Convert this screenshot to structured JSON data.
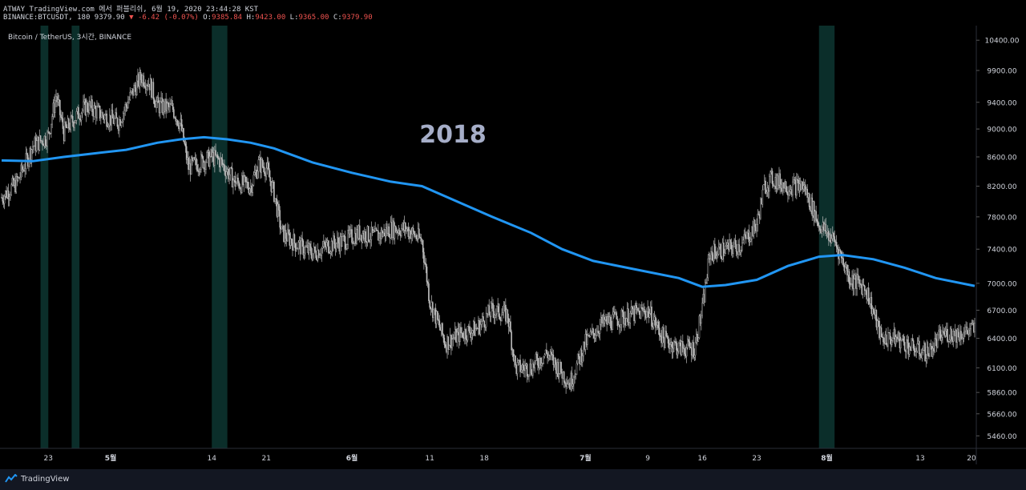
{
  "header": {
    "line1": "ATWAY TradingView.com 에서 퍼블리쉬, 6월 19, 2020 23:44:28 KST",
    "symbol_prefix": "BINANCE:BTCUSDT, 180 9379.90",
    "change": "▼ -6.42 (-0.07%)",
    "o_label": "O:",
    "o_value": "9385.84",
    "h_label": "H:",
    "h_value": "9423.00",
    "l_label": "L:",
    "l_value": "9365.00",
    "c_label": "C:",
    "c_value": "9379.90"
  },
  "footer": {
    "brand": "TradingView"
  },
  "colors": {
    "background": "#000000",
    "candle": "#bdbdbd",
    "moving_average": "#2196f3",
    "highlight_band": "#0b2e2a",
    "axis_text": "#d1d4dc",
    "annotation": "#a6aec8",
    "down": "#ef5350"
  },
  "chart_data": {
    "type": "line",
    "title": "Bitcoin / TetherUS, 3시간, BINANCE",
    "annotation": "2018",
    "y_ticks": [
      "10400.00",
      "9900.00",
      "9400.00",
      "9000.00",
      "8600.00",
      "8200.00",
      "7800.00",
      "7400.00",
      "7000.00",
      "6700.00",
      "6400.00",
      "6100.00",
      "5860.00",
      "5660.00",
      "5460.00"
    ],
    "y_tick_values": [
      10400,
      9900,
      9400,
      9000,
      8600,
      8200,
      7800,
      7400,
      7000,
      6700,
      6400,
      6100,
      5860,
      5660,
      5460
    ],
    "y_scale": "log",
    "ylim": [
      5350,
      10650
    ],
    "x_range": [
      "2018-04-17",
      "2018-08-20"
    ],
    "x_ticks": [
      {
        "date": "2018-04-23",
        "label": "23"
      },
      {
        "date": "2018-05-01",
        "label": "5월"
      },
      {
        "date": "2018-05-14",
        "label": "14"
      },
      {
        "date": "2018-05-21",
        "label": "21"
      },
      {
        "date": "2018-06-01",
        "label": "6월"
      },
      {
        "date": "2018-06-11",
        "label": "11"
      },
      {
        "date": "2018-06-18",
        "label": "18"
      },
      {
        "date": "2018-07-01",
        "label": "7월"
      },
      {
        "date": "2018-07-09",
        "label": "9"
      },
      {
        "date": "2018-07-16",
        "label": "16"
      },
      {
        "date": "2018-07-23",
        "label": "23"
      },
      {
        "date": "2018-08-01",
        "label": "8월"
      },
      {
        "date": "2018-08-13",
        "label": "13"
      },
      {
        "date": "2018-08-20",
        "label": "20"
      }
    ],
    "highlight_bands": [
      {
        "start": "2018-04-22",
        "end": "2018-04-23"
      },
      {
        "start": "2018-04-26",
        "end": "2018-04-27"
      },
      {
        "start": "2018-05-14",
        "end": "2018-05-16"
      },
      {
        "start": "2018-07-31",
        "end": "2018-08-02"
      }
    ],
    "series": [
      {
        "type": "candlestick_close",
        "points": [
          [
            "2018-04-17",
            8050
          ],
          [
            "2018-04-19",
            8250
          ],
          [
            "2018-04-21",
            8750
          ],
          [
            "2018-04-23",
            8900
          ],
          [
            "2018-04-24",
            9500
          ],
          [
            "2018-04-25",
            8950
          ],
          [
            "2018-04-27",
            9250
          ],
          [
            "2018-04-28",
            9350
          ],
          [
            "2018-04-30",
            9200
          ],
          [
            "2018-05-02",
            9100
          ],
          [
            "2018-05-04",
            9600
          ],
          [
            "2018-05-05",
            9800
          ],
          [
            "2018-05-06",
            9700
          ],
          [
            "2018-05-07",
            9350
          ],
          [
            "2018-05-09",
            9300
          ],
          [
            "2018-05-10",
            9050
          ],
          [
            "2018-05-11",
            8450
          ],
          [
            "2018-05-12",
            8500
          ],
          [
            "2018-05-14",
            8600
          ],
          [
            "2018-05-15",
            8550
          ],
          [
            "2018-05-17",
            8250
          ],
          [
            "2018-05-19",
            8200
          ],
          [
            "2018-05-20",
            8500
          ],
          [
            "2018-05-21",
            8450
          ],
          [
            "2018-05-22",
            8100
          ],
          [
            "2018-05-23",
            7600
          ],
          [
            "2018-05-25",
            7450
          ],
          [
            "2018-05-27",
            7350
          ],
          [
            "2018-05-29",
            7450
          ],
          [
            "2018-05-31",
            7500
          ],
          [
            "2018-06-02",
            7600
          ],
          [
            "2018-06-04",
            7550
          ],
          [
            "2018-06-06",
            7650
          ],
          [
            "2018-06-08",
            7650
          ],
          [
            "2018-06-10",
            7500
          ],
          [
            "2018-06-11",
            6800
          ],
          [
            "2018-06-13",
            6350
          ],
          [
            "2018-06-15",
            6450
          ],
          [
            "2018-06-17",
            6500
          ],
          [
            "2018-06-19",
            6700
          ],
          [
            "2018-06-21",
            6650
          ],
          [
            "2018-06-22",
            6100
          ],
          [
            "2018-06-24",
            6100
          ],
          [
            "2018-06-26",
            6250
          ],
          [
            "2018-06-28",
            6050
          ],
          [
            "2018-06-29",
            5950
          ],
          [
            "2018-07-01",
            6350
          ],
          [
            "2018-07-03",
            6550
          ],
          [
            "2018-07-05",
            6600
          ],
          [
            "2018-07-07",
            6650
          ],
          [
            "2018-07-09",
            6700
          ],
          [
            "2018-07-11",
            6400
          ],
          [
            "2018-07-13",
            6300
          ],
          [
            "2018-07-15",
            6300
          ],
          [
            "2018-07-16",
            6700
          ],
          [
            "2018-07-17",
            7350
          ],
          [
            "2018-07-19",
            7400
          ],
          [
            "2018-07-21",
            7450
          ],
          [
            "2018-07-23",
            7700
          ],
          [
            "2018-07-24",
            8200
          ],
          [
            "2018-07-25",
            8300
          ],
          [
            "2018-07-27",
            8200
          ],
          [
            "2018-07-29",
            8200
          ],
          [
            "2018-07-31",
            7700
          ],
          [
            "2018-08-02",
            7500
          ],
          [
            "2018-08-04",
            7050
          ],
          [
            "2018-08-06",
            6950
          ],
          [
            "2018-08-08",
            6400
          ],
          [
            "2018-08-10",
            6400
          ],
          [
            "2018-08-12",
            6300
          ],
          [
            "2018-08-14",
            6250
          ],
          [
            "2018-08-16",
            6450
          ],
          [
            "2018-08-18",
            6450
          ],
          [
            "2018-08-20",
            6500
          ]
        ]
      },
      {
        "type": "moving_average",
        "points": [
          [
            "2018-04-17",
            8550
          ],
          [
            "2018-04-21",
            8540
          ],
          [
            "2018-04-25",
            8600
          ],
          [
            "2018-04-29",
            8650
          ],
          [
            "2018-05-03",
            8700
          ],
          [
            "2018-05-07",
            8800
          ],
          [
            "2018-05-10",
            8850
          ],
          [
            "2018-05-13",
            8880
          ],
          [
            "2018-05-16",
            8850
          ],
          [
            "2018-05-19",
            8800
          ],
          [
            "2018-05-22",
            8720
          ],
          [
            "2018-05-27",
            8520
          ],
          [
            "2018-06-01",
            8380
          ],
          [
            "2018-06-06",
            8260
          ],
          [
            "2018-06-10",
            8200
          ],
          [
            "2018-06-14",
            8020
          ],
          [
            "2018-06-19",
            7800
          ],
          [
            "2018-06-24",
            7600
          ],
          [
            "2018-06-28",
            7400
          ],
          [
            "2018-07-02",
            7260
          ],
          [
            "2018-07-08",
            7150
          ],
          [
            "2018-07-13",
            7060
          ],
          [
            "2018-07-16",
            6960
          ],
          [
            "2018-07-19",
            6980
          ],
          [
            "2018-07-23",
            7040
          ],
          [
            "2018-07-27",
            7200
          ],
          [
            "2018-07-31",
            7310
          ],
          [
            "2018-08-03",
            7330
          ],
          [
            "2018-08-07",
            7280
          ],
          [
            "2018-08-11",
            7180
          ],
          [
            "2018-08-15",
            7060
          ],
          [
            "2018-08-20",
            6970
          ]
        ]
      }
    ]
  }
}
